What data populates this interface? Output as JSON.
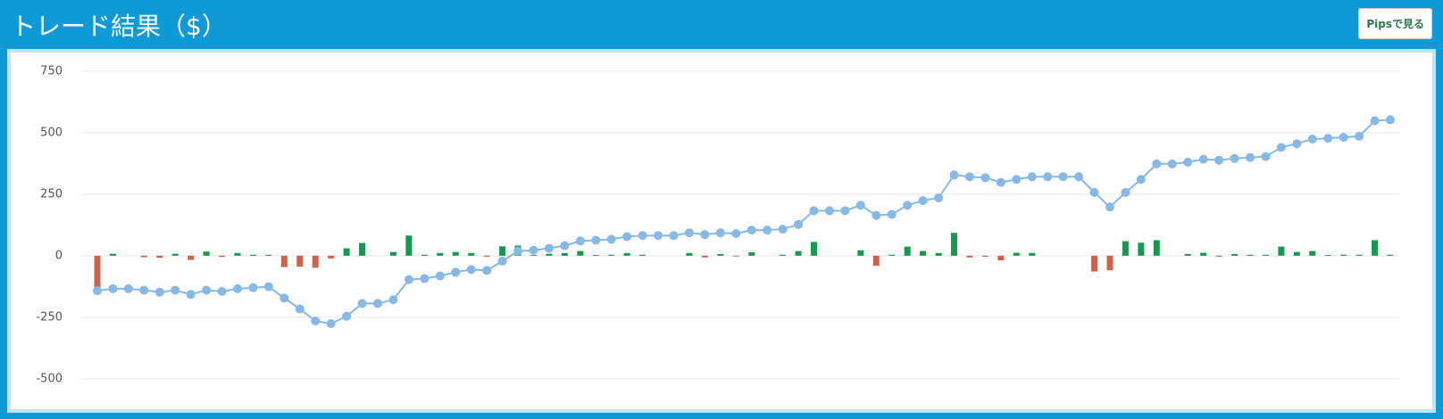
{
  "header": {
    "title": "トレード結果（$）",
    "button": "Pipsで見る"
  },
  "chart_data": {
    "type": "combo",
    "ylim": [
      -580,
      760
    ],
    "yticks": [
      750,
      500,
      250,
      0,
      -250,
      -500
    ],
    "grid": true,
    "series": [
      {
        "type": "bar",
        "color": "#149a4e",
        "negative_color": "#cf6348",
        "values": [
          -142,
          8,
          0,
          -6,
          -8,
          8,
          -17,
          17,
          -5,
          11,
          4,
          4,
          -46,
          -44,
          -49,
          -11,
          30,
          52,
          0,
          15,
          82,
          4,
          11,
          15,
          11,
          -4,
          38,
          41,
          3,
          8,
          11,
          19,
          3,
          4,
          11,
          4,
          0,
          0,
          11,
          -7,
          7,
          -3,
          14,
          0,
          4,
          19,
          56,
          0,
          0,
          22,
          -41,
          4,
          37,
          19,
          11,
          93,
          -7,
          -4,
          -19,
          12,
          11,
          0,
          0,
          0,
          -64,
          -59,
          59,
          53,
          63,
          0,
          7,
          12,
          -4,
          7,
          4,
          4,
          37,
          15,
          19,
          3,
          4,
          4,
          63,
          4
        ]
      },
      {
        "type": "line",
        "color": "#86b9e6",
        "values": [
          -142,
          -134,
          -134,
          -140,
          -148,
          -140,
          -157,
          -140,
          -145,
          -134,
          -130,
          -126,
          -172,
          -216,
          -265,
          -276,
          -246,
          -194,
          -194,
          -179,
          -97,
          -93,
          -82,
          -67,
          -56,
          -60,
          -22,
          19,
          22,
          30,
          41,
          60,
          63,
          67,
          78,
          82,
          82,
          82,
          93,
          86,
          93,
          90,
          104,
          104,
          108,
          127,
          183,
          183,
          183,
          205,
          164,
          168,
          205,
          224,
          235,
          328,
          321,
          317,
          298,
          310,
          321,
          321,
          321,
          321,
          257,
          198,
          257,
          310,
          373,
          373,
          380,
          392,
          388,
          395,
          399,
          403,
          440,
          455,
          474,
          477,
          481,
          485,
          548,
          552
        ]
      }
    ]
  }
}
